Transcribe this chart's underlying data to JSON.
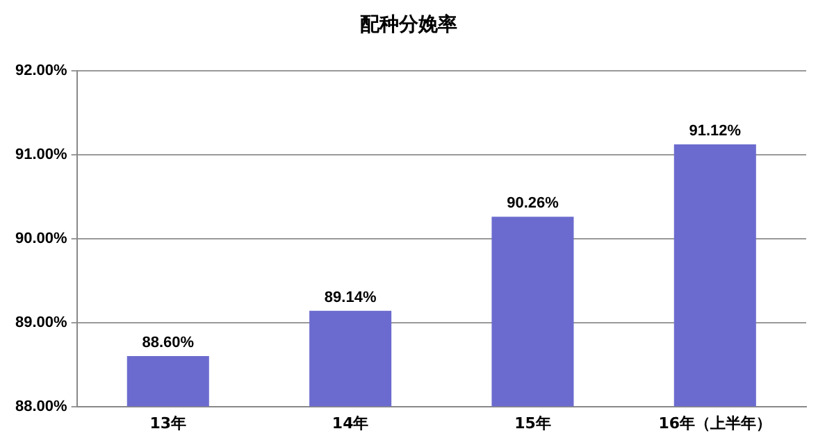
{
  "chart_data": {
    "type": "bar",
    "title": "配种分娩率",
    "categories": [
      "13年",
      "14年",
      "15年",
      "16年（上半年）"
    ],
    "values": [
      88.6,
      89.14,
      90.26,
      91.12
    ],
    "value_labels": [
      "88.60%",
      "89.14%",
      "90.26%",
      "91.12%"
    ],
    "color": "#6b6bcf",
    "ylim": [
      88,
      92
    ],
    "yticks": [
      {
        "value": 88,
        "label": "88.00%"
      },
      {
        "value": 89,
        "label": "89.00%"
      },
      {
        "value": 90,
        "label": "90.00%"
      },
      {
        "value": 91,
        "label": "91.00%"
      },
      {
        "value": 92,
        "label": "92.00%"
      }
    ],
    "grid": "y",
    "legend": false
  }
}
